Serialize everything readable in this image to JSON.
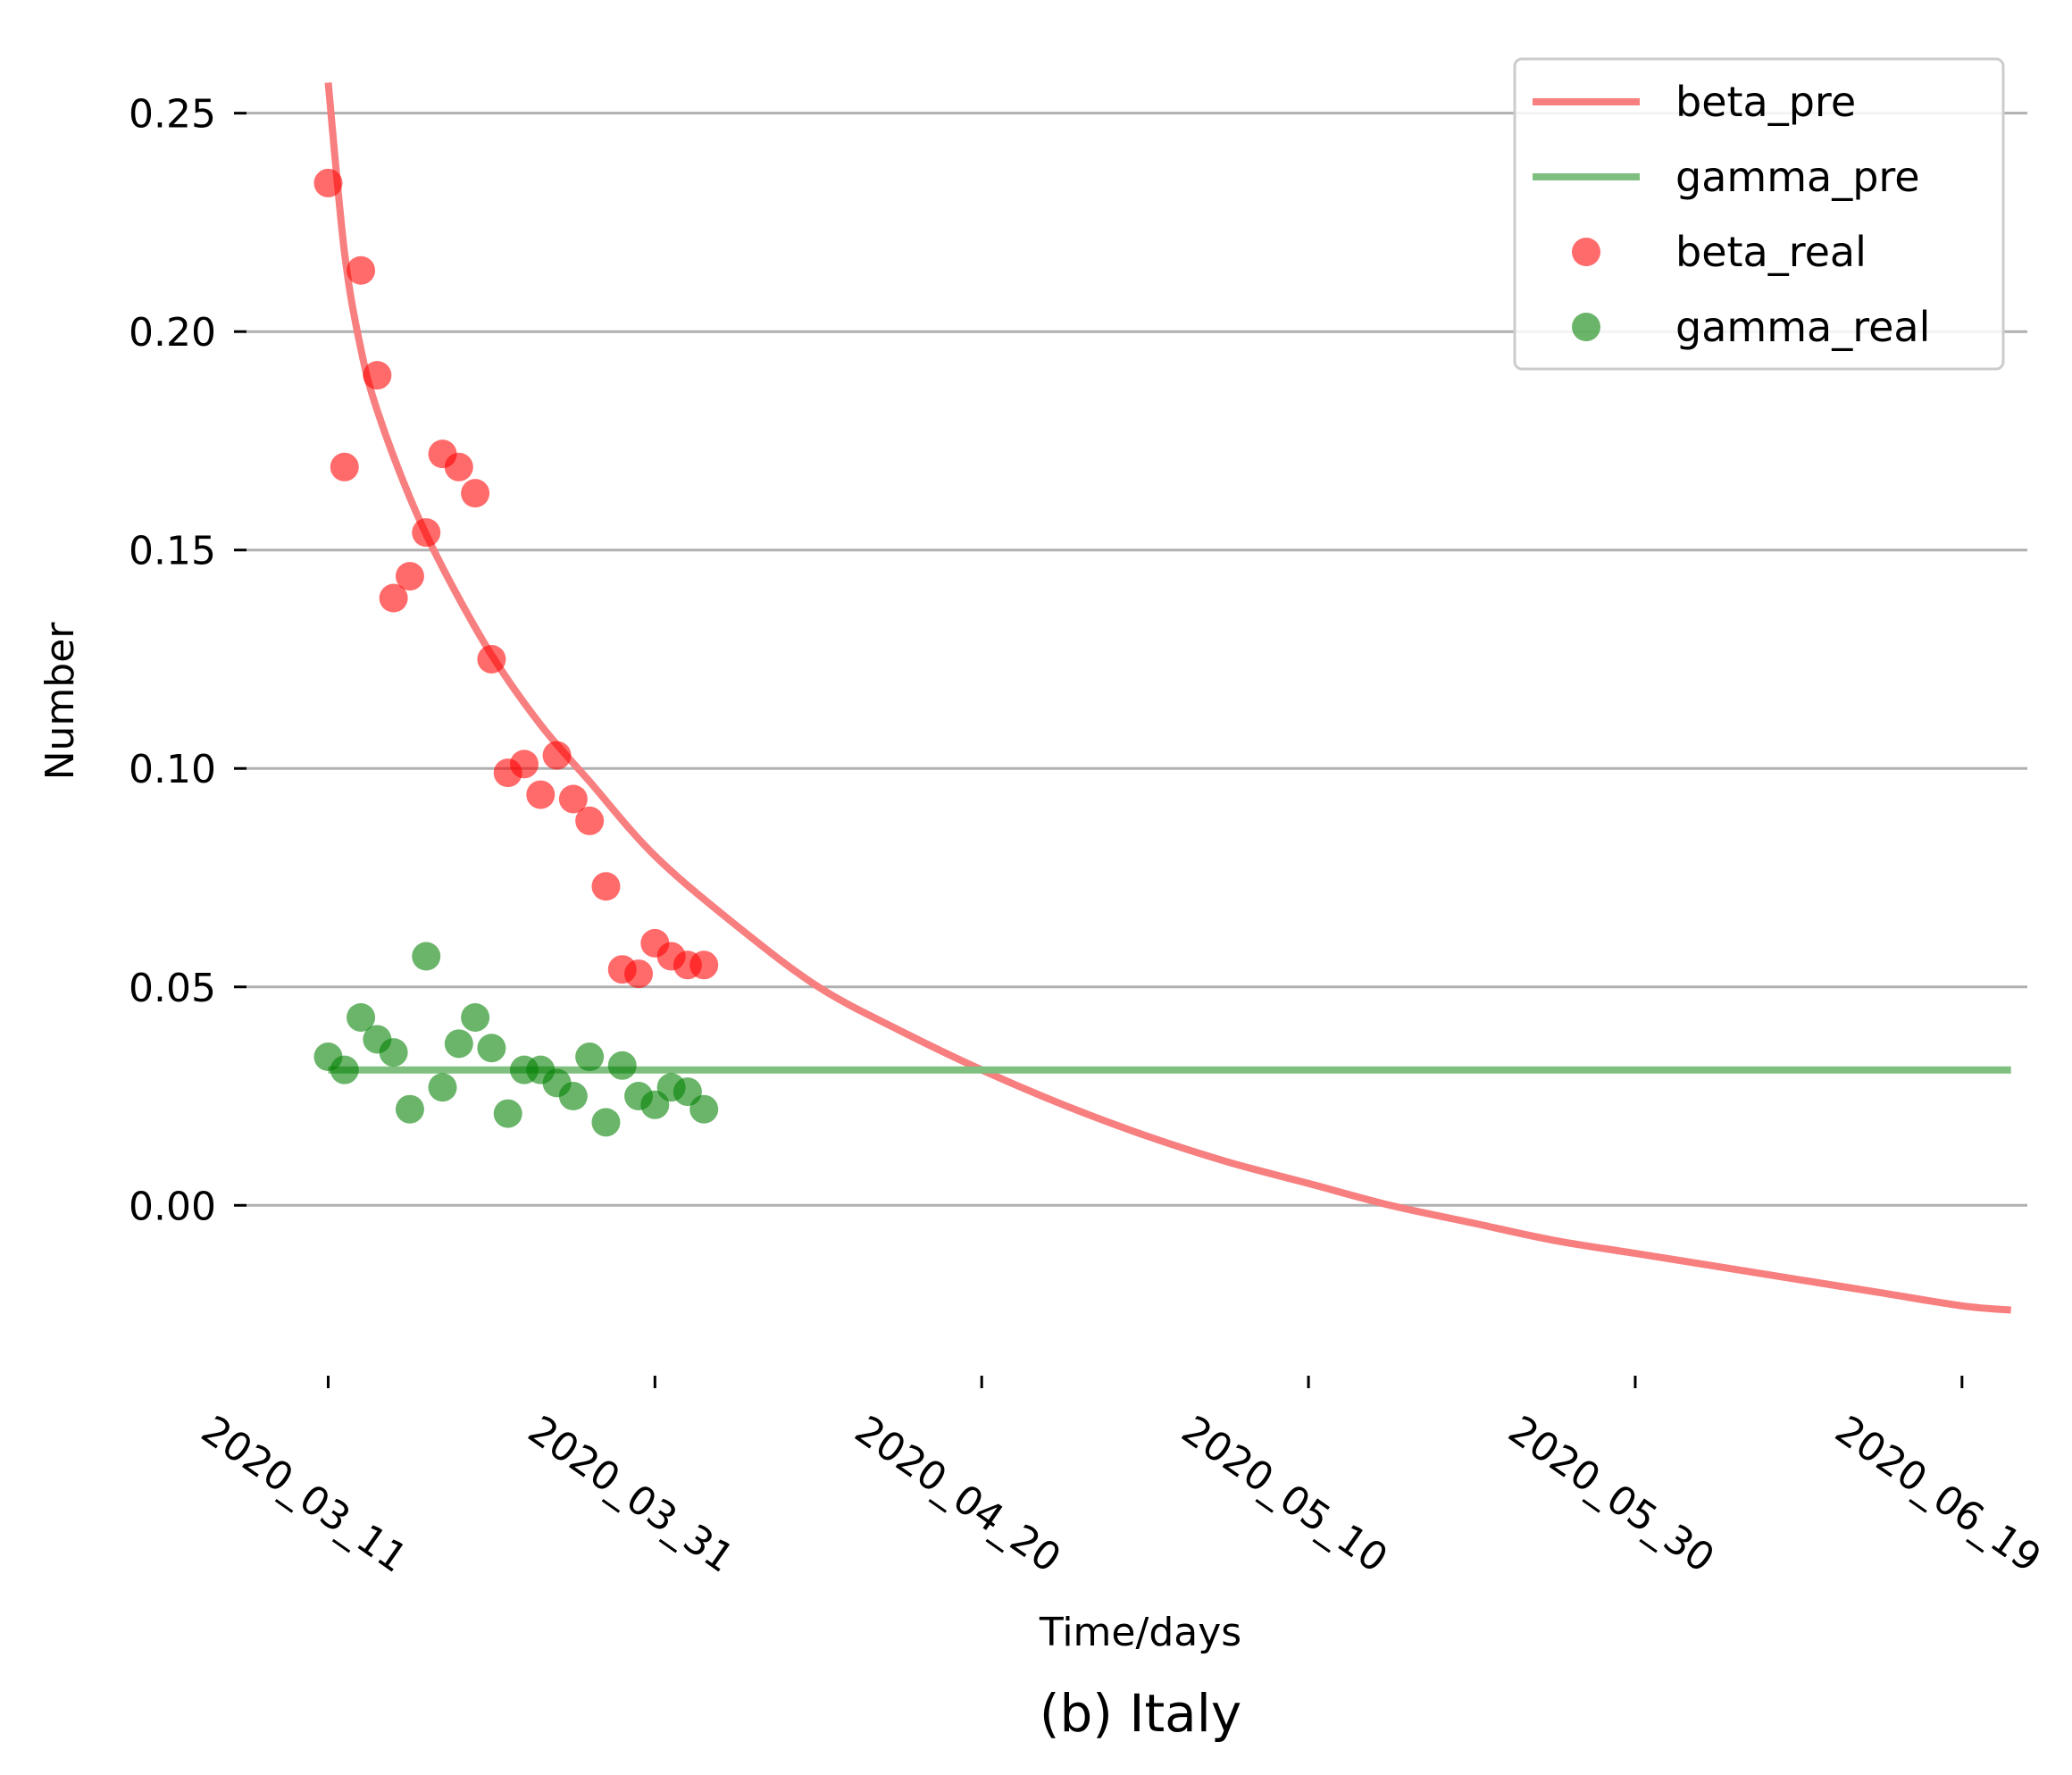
{
  "chart_data": {
    "type": "line",
    "xlabel": "Time/days",
    "ylabel": "Number",
    "caption": "(b) Italy",
    "ylim": [
      -0.039,
      0.262
    ],
    "yticks": [
      0.0,
      0.05,
      0.1,
      0.15,
      0.2,
      0.25
    ],
    "ytick_labels": [
      "0.00",
      "0.05",
      "0.10",
      "0.15",
      "0.20",
      "0.25"
    ],
    "x_start": "2020_03_11",
    "xlim": [
      "2020_03_06",
      "2020_06_23"
    ],
    "xticks": [
      "2020_03_11",
      "2020_03_31",
      "2020_04_20",
      "2020_05_10",
      "2020_05_30",
      "2020_06_19"
    ],
    "xtick_labels": [
      "2020_03_11",
      "2020_03_31",
      "2020_04_20",
      "2020_05_10",
      "2020_05_30",
      "2020_06_19"
    ],
    "grid": "horizontal",
    "legend_position": "top-right",
    "series": [
      {
        "name": "beta_pre",
        "kind": "line",
        "color": "#f87f7f",
        "x": [
          "2020_03_11",
          "2020_03_12",
          "2020_03_13",
          "2020_03_14",
          "2020_03_16",
          "2020_03_18",
          "2020_03_21",
          "2020_03_24",
          "2020_03_27",
          "2020_03_31",
          "2020_04_05",
          "2020_04_10",
          "2020_04_15",
          "2020_04_20",
          "2020_04_25",
          "2020_04_30",
          "2020_05_05",
          "2020_05_10",
          "2020_05_15",
          "2020_05_20",
          "2020_05_25",
          "2020_05_30",
          "2020_06_04",
          "2020_06_09",
          "2020_06_14",
          "2020_06_19",
          "2020_06_22"
        ],
        "y": [
          0.257,
          0.218,
          0.196,
          0.182,
          0.162,
          0.146,
          0.126,
          0.11,
          0.097,
          0.08,
          0.064,
          0.05,
          0.04,
          0.031,
          0.023,
          0.016,
          0.01,
          0.005,
          0.0,
          -0.004,
          -0.008,
          -0.011,
          -0.014,
          -0.017,
          -0.02,
          -0.023,
          -0.024
        ]
      },
      {
        "name": "gamma_pre",
        "kind": "line",
        "color": "#7fbf7f",
        "x": [
          "2020_03_11",
          "2020_06_22"
        ],
        "y": [
          0.031,
          0.031
        ]
      },
      {
        "name": "beta_real",
        "kind": "scatter",
        "color": "#ff0000",
        "x": [
          "2020_03_11",
          "2020_03_12",
          "2020_03_13",
          "2020_03_14",
          "2020_03_15",
          "2020_03_16",
          "2020_03_17",
          "2020_03_18",
          "2020_03_19",
          "2020_03_20",
          "2020_03_21",
          "2020_03_22",
          "2020_03_23",
          "2020_03_24",
          "2020_03_25",
          "2020_03_26",
          "2020_03_27",
          "2020_03_28",
          "2020_03_29",
          "2020_03_30",
          "2020_03_31",
          "2020_04_01",
          "2020_04_02",
          "2020_04_03"
        ],
        "y": [
          0.234,
          0.169,
          0.214,
          0.19,
          0.139,
          0.144,
          0.154,
          0.172,
          0.169,
          0.163,
          0.125,
          0.099,
          0.101,
          0.094,
          0.103,
          0.093,
          0.088,
          0.073,
          0.054,
          0.053,
          0.06,
          0.057,
          0.055,
          0.055
        ]
      },
      {
        "name": "gamma_real",
        "kind": "scatter",
        "color": "#008000",
        "x": [
          "2020_03_11",
          "2020_03_12",
          "2020_03_13",
          "2020_03_14",
          "2020_03_15",
          "2020_03_16",
          "2020_03_17",
          "2020_03_18",
          "2020_03_19",
          "2020_03_20",
          "2020_03_21",
          "2020_03_22",
          "2020_03_23",
          "2020_03_24",
          "2020_03_25",
          "2020_03_26",
          "2020_03_27",
          "2020_03_28",
          "2020_03_29",
          "2020_03_30",
          "2020_03_31",
          "2020_04_01",
          "2020_04_02",
          "2020_04_03"
        ],
        "y": [
          0.034,
          0.031,
          0.043,
          0.038,
          0.035,
          0.022,
          0.057,
          0.027,
          0.037,
          0.043,
          0.036,
          0.021,
          0.031,
          0.031,
          0.028,
          0.025,
          0.034,
          0.019,
          0.032,
          0.025,
          0.023,
          0.027,
          0.026,
          0.022
        ]
      }
    ]
  }
}
